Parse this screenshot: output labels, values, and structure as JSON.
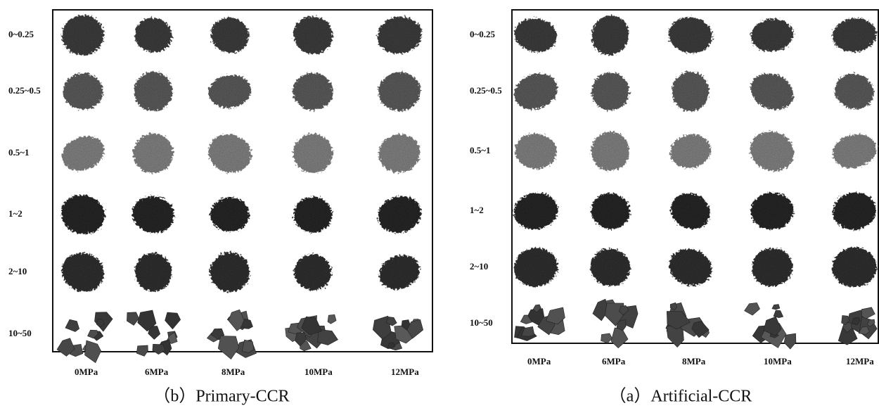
{
  "panels": [
    {
      "caption": "（b）Primary-CCR",
      "rows": [
        "0~0.25",
        "0.25~0.5",
        "0.5~1",
        "1~2",
        "2~10",
        "10~50"
      ],
      "columns": [
        "0MPa",
        "6MPa",
        "8MPa",
        "10MPa",
        "12MPa"
      ]
    },
    {
      "caption": "（a）Artificial-CCR",
      "rows": [
        "0~0.25",
        "0.25~0.5",
        "0.5~1",
        "1~2",
        "2~10",
        "10~50"
      ],
      "columns": [
        "0MPa",
        "6MPa",
        "8MPa",
        "10MPa",
        "12MPa"
      ]
    }
  ]
}
